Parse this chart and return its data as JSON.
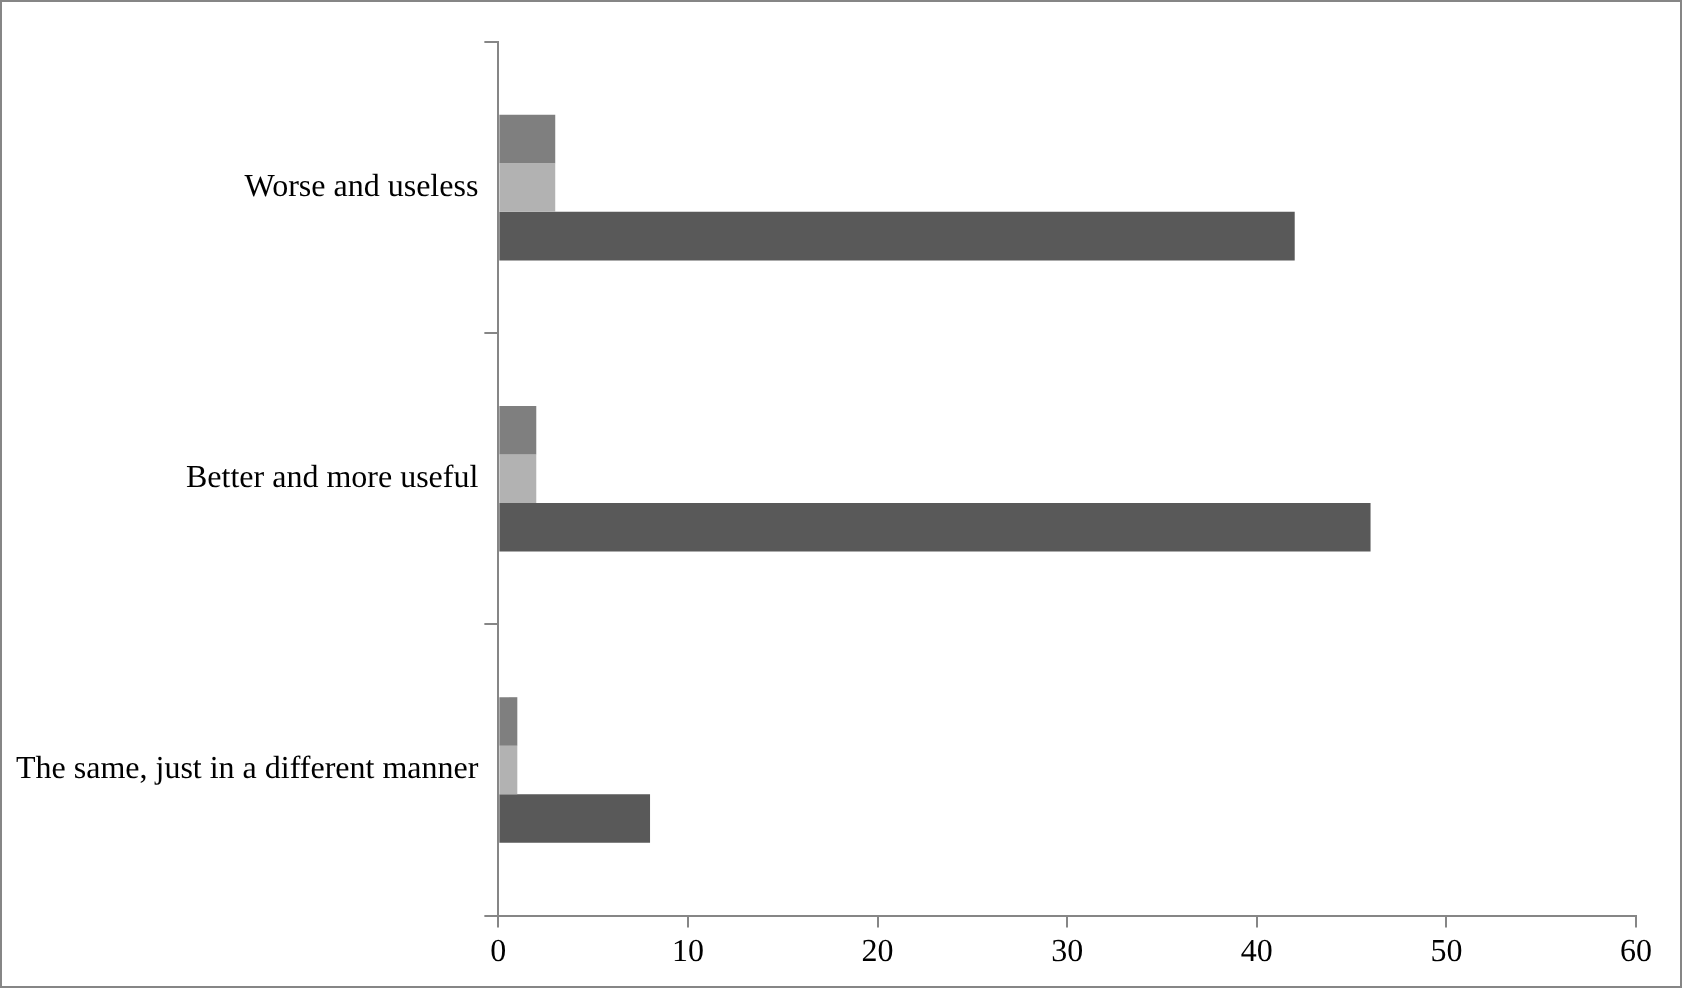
{
  "chart_data": {
    "type": "bar",
    "orientation": "horizontal",
    "categories": [
      "Worse and useless",
      "Better and more useful",
      "The same, just in a different manner"
    ],
    "series": [
      {
        "color": "#7f7f7f",
        "values": [
          3,
          2,
          1
        ]
      },
      {
        "color": "#b2b2b2",
        "values": [
          3,
          2,
          1
        ]
      },
      {
        "color": "#595959",
        "values": [
          42,
          46,
          8
        ]
      }
    ],
    "xlim": [
      0,
      60
    ],
    "xticks": [
      0,
      10,
      20,
      30,
      40,
      50,
      60
    ],
    "grid": false,
    "legend": false
  }
}
